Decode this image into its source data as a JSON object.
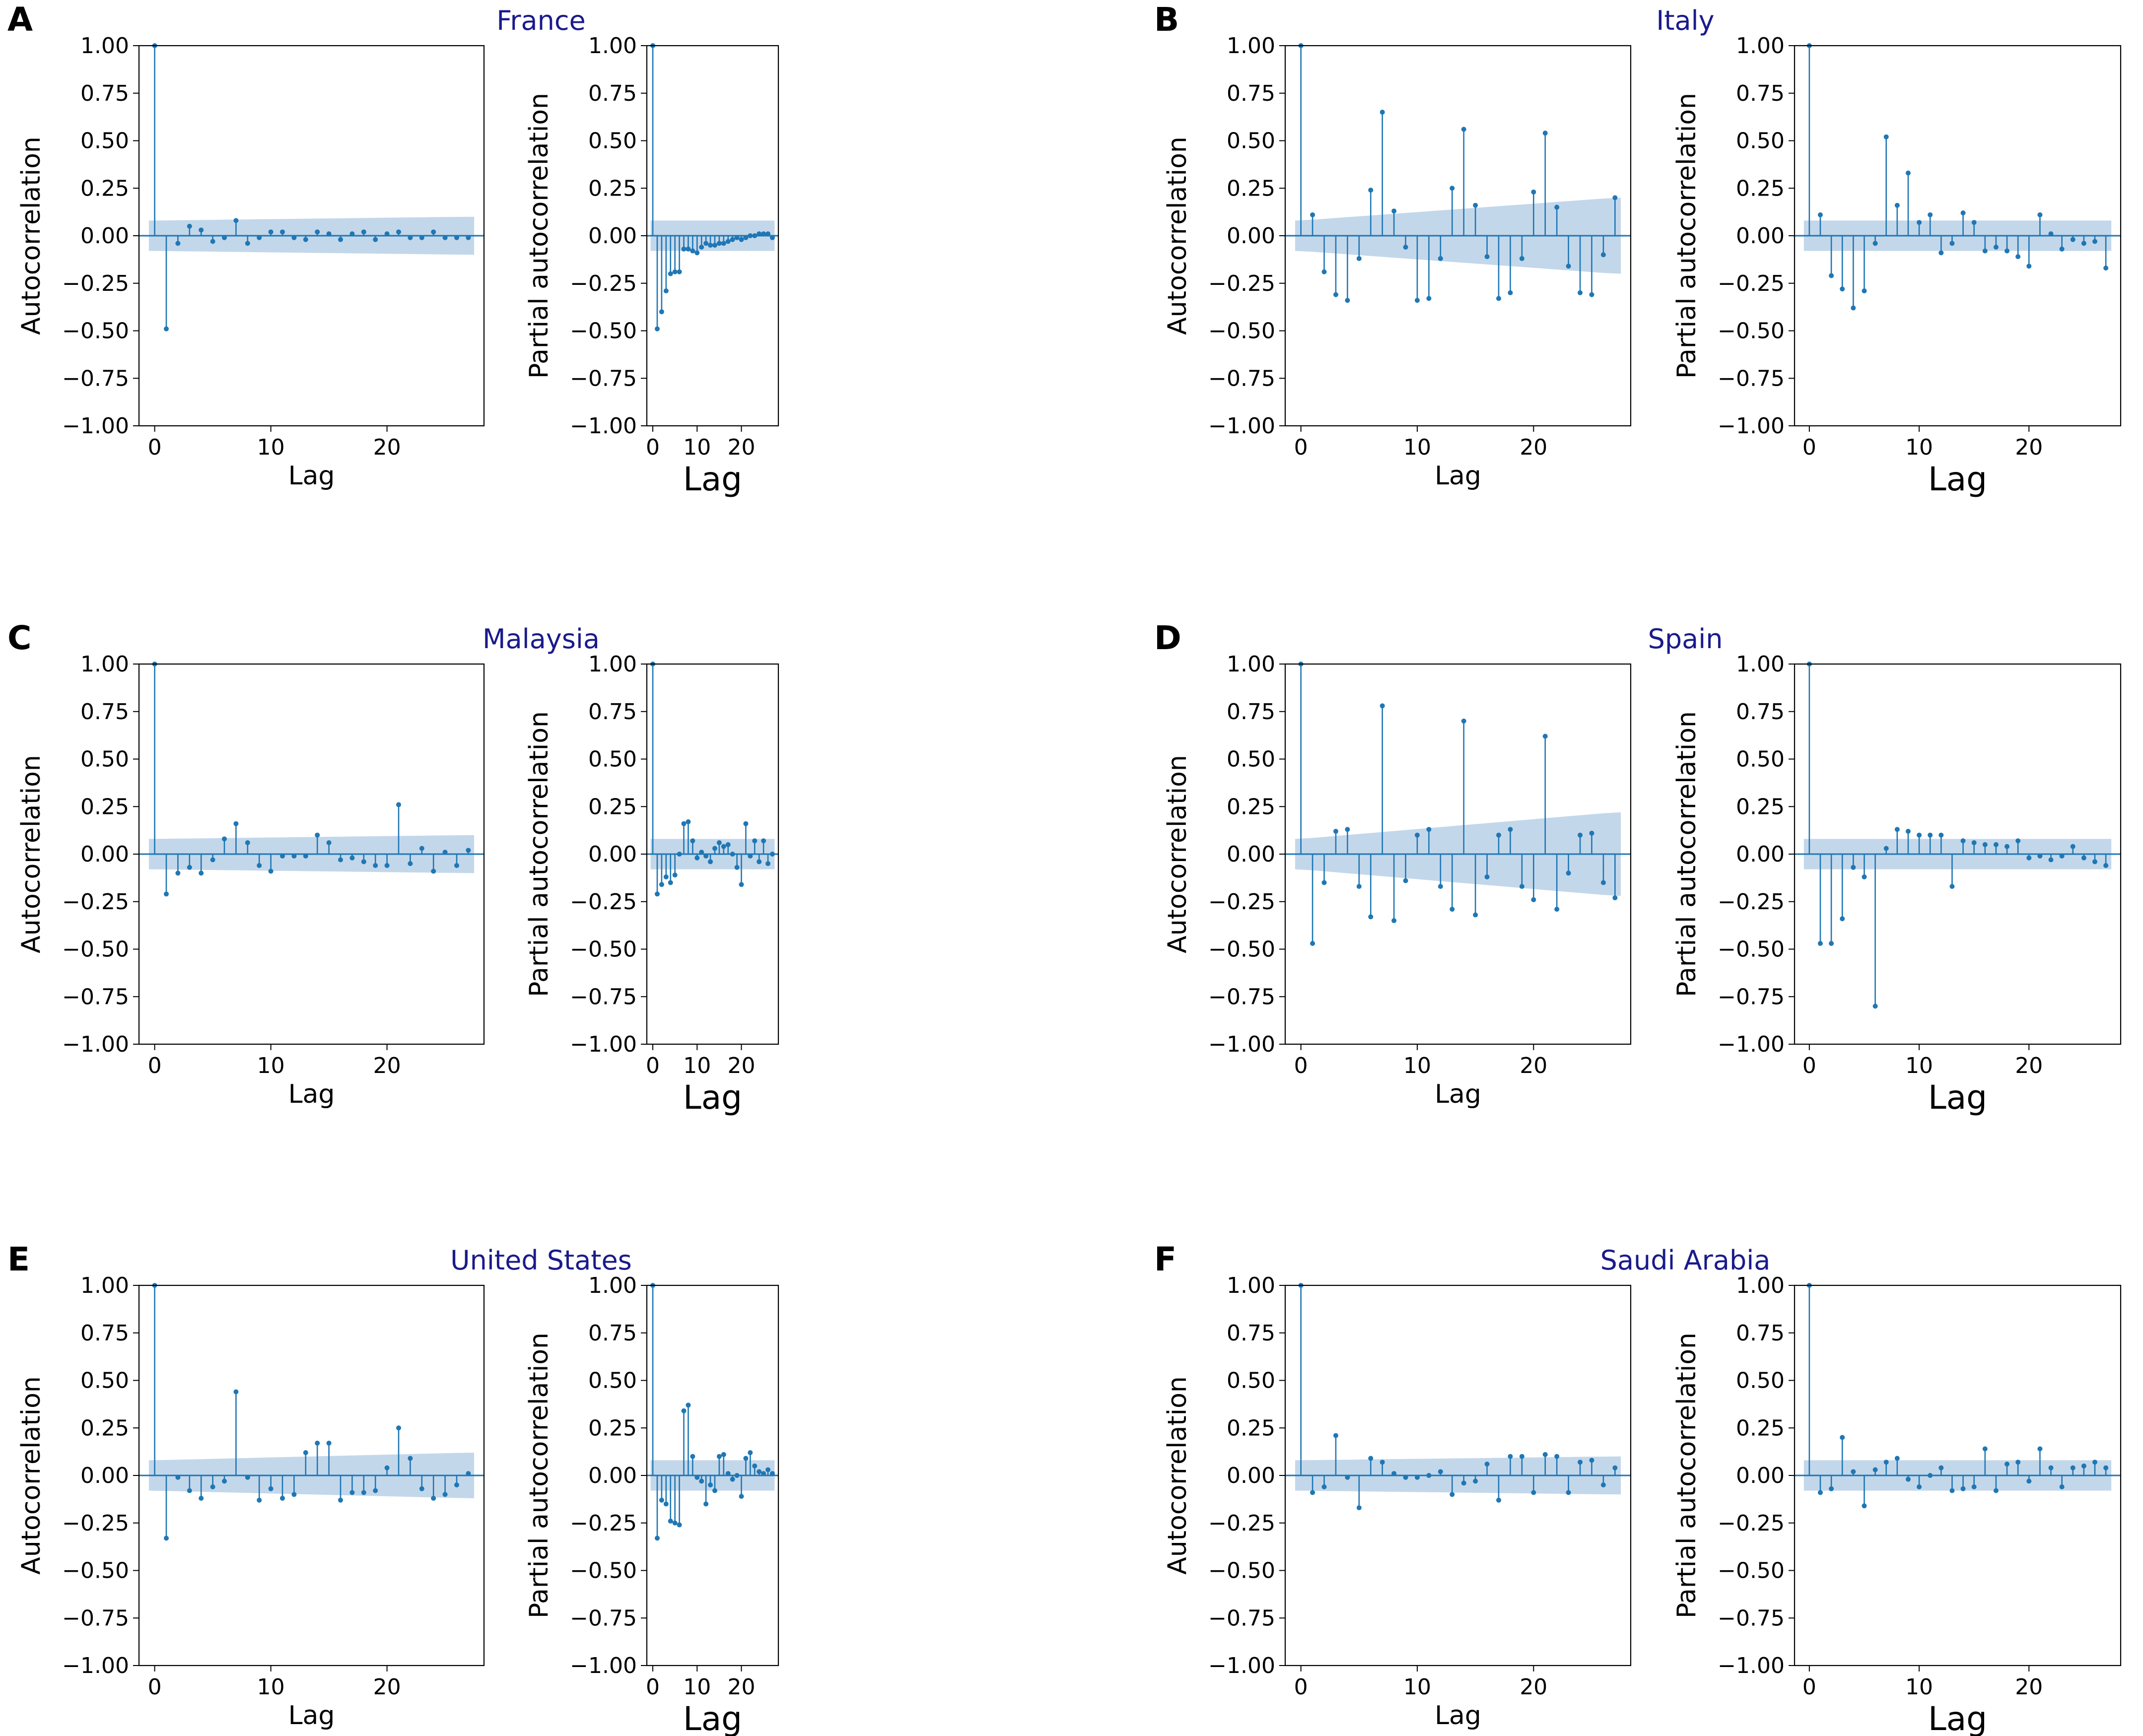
{
  "figure": {
    "colors": {
      "stem": "#1f77b4",
      "band": "#a9c6e3",
      "title": "#1a1a8c",
      "axis": "#000000"
    }
  },
  "chart_data": [
    {
      "panel_letter": "A",
      "country": "France",
      "plots": [
        {
          "type": "acf",
          "ylabel": "Autocorrelation",
          "xlabel": "Lag",
          "ylim": [
            -1,
            1
          ],
          "xticks": [
            0,
            10,
            20
          ],
          "yticks": [
            "1.00",
            "0.75",
            "0.50",
            "0.25",
            "0.00",
            "−0.25",
            "−0.50",
            "−0.75",
            "−1.00"
          ],
          "lags": [
            0,
            1,
            2,
            3,
            4,
            5,
            6,
            7,
            8,
            9,
            10,
            11,
            12,
            13,
            14,
            15,
            16,
            17,
            18,
            19,
            20,
            21,
            22,
            23,
            24,
            25,
            26,
            27
          ],
          "values": [
            1.0,
            -0.49,
            -0.04,
            0.05,
            0.03,
            -0.03,
            -0.01,
            0.08,
            -0.04,
            -0.01,
            0.02,
            0.02,
            -0.01,
            -0.02,
            0.02,
            0.01,
            -0.02,
            0.01,
            0.02,
            -0.02,
            0.01,
            0.02,
            -0.01,
            -0.01,
            0.02,
            -0.01,
            -0.01,
            -0.01
          ],
          "conf_band": {
            "start": 0.08,
            "end": 0.1
          }
        },
        {
          "type": "pacf",
          "ylabel": "Partial autocorrelation",
          "xlabel": "Lag",
          "ylim": [
            -1,
            1
          ],
          "xticks": [
            0,
            10,
            20
          ],
          "yticks": [
            "1.00",
            "0.75",
            "0.50",
            "0.25",
            "0.00",
            "−0.25",
            "−0.50",
            "−0.75",
            "−1.00"
          ],
          "lags": [
            0,
            1,
            2,
            3,
            4,
            5,
            6,
            7,
            8,
            9,
            10,
            11,
            12,
            13,
            14,
            15,
            16,
            17,
            18,
            19,
            20,
            21,
            22,
            23,
            24,
            25,
            26,
            27
          ],
          "values": [
            1.0,
            -0.49,
            -0.4,
            -0.29,
            -0.2,
            -0.19,
            -0.19,
            -0.07,
            -0.07,
            -0.08,
            -0.09,
            -0.06,
            -0.04,
            -0.05,
            -0.05,
            -0.04,
            -0.04,
            -0.03,
            -0.02,
            -0.01,
            -0.02,
            -0.01,
            0.0,
            0.0,
            0.01,
            0.01,
            0.01,
            -0.01
          ],
          "conf_band": {
            "start": 0.08,
            "end": 0.08
          }
        }
      ]
    },
    {
      "panel_letter": "B",
      "country": "Italy",
      "plots": [
        {
          "type": "acf",
          "ylabel": "Autocorrelation",
          "xlabel": "Lag",
          "ylim": [
            -1,
            1
          ],
          "xticks": [
            0,
            10,
            20
          ],
          "yticks": [
            "1.00",
            "0.75",
            "0.50",
            "0.25",
            "0.00",
            "−0.25",
            "−0.50",
            "−0.75",
            "−1.00"
          ],
          "lags": [
            0,
            1,
            2,
            3,
            4,
            5,
            6,
            7,
            8,
            9,
            10,
            11,
            12,
            13,
            14,
            15,
            16,
            17,
            18,
            19,
            20,
            21,
            22,
            23,
            24,
            25,
            26,
            27
          ],
          "values": [
            1.0,
            0.11,
            -0.19,
            -0.31,
            -0.34,
            -0.12,
            0.24,
            0.65,
            0.13,
            -0.06,
            -0.34,
            -0.33,
            -0.12,
            0.25,
            0.56,
            0.16,
            -0.11,
            -0.33,
            -0.3,
            -0.12,
            0.23,
            0.54,
            0.15,
            -0.16,
            -0.3,
            -0.31,
            -0.1,
            0.2
          ],
          "conf_band": {
            "start": 0.08,
            "end": 0.2
          }
        },
        {
          "type": "pacf",
          "ylabel": "Partial autocorrelation",
          "xlabel": "Lag",
          "ylim": [
            -1,
            1
          ],
          "xticks": [
            0,
            10,
            20
          ],
          "yticks": [
            "1.00",
            "0.75",
            "0.50",
            "0.25",
            "0.00",
            "−0.25",
            "−0.50",
            "−0.75",
            "−1.00"
          ],
          "lags": [
            0,
            1,
            2,
            3,
            4,
            5,
            6,
            7,
            8,
            9,
            10,
            11,
            12,
            13,
            14,
            15,
            16,
            17,
            18,
            19,
            20,
            21,
            22,
            23,
            24,
            25,
            26,
            27
          ],
          "values": [
            1.0,
            0.11,
            -0.21,
            -0.28,
            -0.38,
            -0.29,
            -0.04,
            0.52,
            0.16,
            0.33,
            0.07,
            0.11,
            -0.09,
            -0.04,
            0.12,
            0.07,
            -0.08,
            -0.06,
            -0.08,
            -0.11,
            -0.16,
            0.11,
            0.01,
            -0.07,
            -0.02,
            -0.04,
            -0.03,
            -0.17
          ],
          "conf_band": {
            "start": 0.08,
            "end": 0.08
          }
        }
      ]
    },
    {
      "panel_letter": "C",
      "country": "Malaysia",
      "plots": [
        {
          "type": "acf",
          "ylabel": "Autocorrelation",
          "xlabel": "Lag",
          "ylim": [
            -1,
            1
          ],
          "xticks": [
            0,
            10,
            20
          ],
          "yticks": [
            "1.00",
            "0.75",
            "0.50",
            "0.25",
            "0.00",
            "−0.25",
            "−0.50",
            "−0.75",
            "−1.00"
          ],
          "lags": [
            0,
            1,
            2,
            3,
            4,
            5,
            6,
            7,
            8,
            9,
            10,
            11,
            12,
            13,
            14,
            15,
            16,
            17,
            18,
            19,
            20,
            21,
            22,
            23,
            24,
            25,
            26,
            27
          ],
          "values": [
            1.0,
            -0.21,
            -0.1,
            -0.07,
            -0.1,
            -0.03,
            0.08,
            0.16,
            0.06,
            -0.06,
            -0.09,
            -0.01,
            -0.01,
            -0.01,
            0.1,
            0.06,
            -0.03,
            -0.02,
            -0.04,
            -0.06,
            -0.06,
            0.26,
            -0.05,
            0.03,
            -0.09,
            0.01,
            -0.06,
            0.02
          ],
          "conf_band": {
            "start": 0.08,
            "end": 0.1
          }
        },
        {
          "type": "pacf",
          "ylabel": "Partial autocorrelation",
          "xlabel": "Lag",
          "ylim": [
            -1,
            1
          ],
          "xticks": [
            0,
            10,
            20
          ],
          "yticks": [
            "1.00",
            "0.75",
            "0.50",
            "0.25",
            "0.00",
            "−0.25",
            "−0.50",
            "−0.75",
            "−1.00"
          ],
          "lags": [
            0,
            1,
            2,
            3,
            4,
            5,
            6,
            7,
            8,
            9,
            10,
            11,
            12,
            13,
            14,
            15,
            16,
            17,
            18,
            19,
            20,
            21,
            22,
            23,
            24,
            25,
            26,
            27
          ],
          "values": [
            1.0,
            -0.21,
            -0.16,
            -0.12,
            -0.15,
            -0.11,
            0.0,
            0.16,
            0.17,
            0.07,
            -0.02,
            0.01,
            -0.01,
            -0.04,
            0.03,
            0.06,
            0.04,
            0.05,
            0.0,
            -0.07,
            -0.16,
            0.16,
            -0.01,
            0.07,
            -0.04,
            0.07,
            -0.05,
            0.0
          ],
          "conf_band": {
            "start": 0.08,
            "end": 0.08
          }
        }
      ]
    },
    {
      "panel_letter": "D",
      "country": "Spain",
      "plots": [
        {
          "type": "acf",
          "ylabel": "Autocorrelation",
          "xlabel": "Lag",
          "ylim": [
            -1,
            1
          ],
          "xticks": [
            0,
            10,
            20
          ],
          "yticks": [
            "1.00",
            "0.75",
            "0.50",
            "0.25",
            "0.00",
            "−0.25",
            "−0.50",
            "−0.75",
            "−1.00"
          ],
          "lags": [
            0,
            1,
            2,
            3,
            4,
            5,
            6,
            7,
            8,
            9,
            10,
            11,
            12,
            13,
            14,
            15,
            16,
            17,
            18,
            19,
            20,
            21,
            22,
            23,
            24,
            25,
            26,
            27
          ],
          "values": [
            1.0,
            -0.47,
            -0.15,
            0.12,
            0.13,
            -0.17,
            -0.33,
            0.78,
            -0.35,
            -0.14,
            0.1,
            0.13,
            -0.17,
            -0.29,
            0.7,
            -0.32,
            -0.12,
            0.1,
            0.13,
            -0.17,
            -0.24,
            0.62,
            -0.29,
            -0.1,
            0.1,
            0.11,
            -0.15,
            -0.23
          ],
          "conf_band": {
            "start": 0.08,
            "end": 0.22
          }
        },
        {
          "type": "pacf",
          "ylabel": "Partial autocorrelation",
          "xlabel": "Lag",
          "ylim": [
            -1,
            1
          ],
          "xticks": [
            0,
            10,
            20
          ],
          "yticks": [
            "1.00",
            "0.75",
            "0.50",
            "0.25",
            "0.00",
            "−0.25",
            "−0.50",
            "−0.75",
            "−1.00"
          ],
          "lags": [
            0,
            1,
            2,
            3,
            4,
            5,
            6,
            7,
            8,
            9,
            10,
            11,
            12,
            13,
            14,
            15,
            16,
            17,
            18,
            19,
            20,
            21,
            22,
            23,
            24,
            25,
            26,
            27
          ],
          "values": [
            1.0,
            -0.47,
            -0.47,
            -0.34,
            -0.07,
            -0.12,
            -0.8,
            0.03,
            0.13,
            0.12,
            0.1,
            0.1,
            0.1,
            -0.17,
            0.07,
            0.06,
            0.05,
            0.05,
            0.04,
            0.07,
            -0.02,
            -0.01,
            -0.03,
            -0.01,
            0.04,
            -0.02,
            -0.04,
            -0.06
          ],
          "conf_band": {
            "start": 0.08,
            "end": 0.08
          }
        }
      ]
    },
    {
      "panel_letter": "E",
      "country": "United States",
      "plots": [
        {
          "type": "acf",
          "ylabel": "Autocorrelation",
          "xlabel": "Lag",
          "ylim": [
            -1,
            1
          ],
          "xticks": [
            0,
            10,
            20
          ],
          "yticks": [
            "1.00",
            "0.75",
            "0.50",
            "0.25",
            "0.00",
            "−0.25",
            "−0.50",
            "−0.75",
            "−1.00"
          ],
          "lags": [
            0,
            1,
            2,
            3,
            4,
            5,
            6,
            7,
            8,
            9,
            10,
            11,
            12,
            13,
            14,
            15,
            16,
            17,
            18,
            19,
            20,
            21,
            22,
            23,
            24,
            25,
            26,
            27
          ],
          "values": [
            1.0,
            -0.33,
            -0.01,
            -0.08,
            -0.12,
            -0.06,
            -0.03,
            0.44,
            -0.01,
            -0.13,
            -0.07,
            -0.12,
            -0.1,
            0.12,
            0.17,
            0.17,
            -0.13,
            -0.09,
            -0.09,
            -0.08,
            0.04,
            0.25,
            0.09,
            -0.07,
            -0.12,
            -0.1,
            -0.05,
            0.01
          ],
          "conf_band": {
            "start": 0.08,
            "end": 0.12
          }
        },
        {
          "type": "pacf",
          "ylabel": "Partial autocorrelation",
          "xlabel": "Lag",
          "ylim": [
            -1,
            1
          ],
          "xticks": [
            0,
            10,
            20
          ],
          "yticks": [
            "1.00",
            "0.75",
            "0.50",
            "0.25",
            "0.00",
            "−0.25",
            "−0.50",
            "−0.75",
            "−1.00"
          ],
          "lags": [
            0,
            1,
            2,
            3,
            4,
            5,
            6,
            7,
            8,
            9,
            10,
            11,
            12,
            13,
            14,
            15,
            16,
            17,
            18,
            19,
            20,
            21,
            22,
            23,
            24,
            25,
            26,
            27
          ],
          "values": [
            1.0,
            -0.33,
            -0.13,
            -0.15,
            -0.24,
            -0.25,
            -0.26,
            0.34,
            0.37,
            0.1,
            -0.01,
            -0.03,
            -0.15,
            -0.05,
            -0.08,
            0.1,
            0.11,
            0.01,
            -0.02,
            0.0,
            -0.11,
            0.09,
            0.12,
            0.05,
            0.02,
            0.01,
            0.03,
            0.01
          ],
          "conf_band": {
            "start": 0.08,
            "end": 0.08
          }
        }
      ]
    },
    {
      "panel_letter": "F",
      "country": "Saudi Arabia",
      "plots": [
        {
          "type": "acf",
          "ylabel": "Autocorrelation",
          "xlabel": "Lag",
          "ylim": [
            -1,
            1
          ],
          "xticks": [
            0,
            10,
            20
          ],
          "yticks": [
            "1.00",
            "0.75",
            "0.50",
            "0.25",
            "0.00",
            "−0.25",
            "−0.50",
            "−0.75",
            "−1.00"
          ],
          "lags": [
            0,
            1,
            2,
            3,
            4,
            5,
            6,
            7,
            8,
            9,
            10,
            11,
            12,
            13,
            14,
            15,
            16,
            17,
            18,
            19,
            20,
            21,
            22,
            23,
            24,
            25,
            26,
            27
          ],
          "values": [
            1.0,
            -0.09,
            -0.06,
            0.21,
            -0.01,
            -0.17,
            0.09,
            0.07,
            0.01,
            -0.01,
            -0.01,
            0.0,
            0.02,
            -0.1,
            -0.04,
            -0.03,
            0.06,
            -0.13,
            0.1,
            0.1,
            -0.09,
            0.11,
            0.1,
            -0.09,
            0.07,
            0.08,
            -0.05,
            0.04
          ],
          "conf_band": {
            "start": 0.08,
            "end": 0.1
          }
        },
        {
          "type": "pacf",
          "ylabel": "Partial autocorrelation",
          "xlabel": "Lag",
          "ylim": [
            -1,
            1
          ],
          "xticks": [
            0,
            10,
            20
          ],
          "yticks": [
            "1.00",
            "0.75",
            "0.50",
            "0.25",
            "0.00",
            "−0.25",
            "−0.50",
            "−0.75",
            "−1.00"
          ],
          "lags": [
            0,
            1,
            2,
            3,
            4,
            5,
            6,
            7,
            8,
            9,
            10,
            11,
            12,
            13,
            14,
            15,
            16,
            17,
            18,
            19,
            20,
            21,
            22,
            23,
            24,
            25,
            26,
            27
          ],
          "values": [
            1.0,
            -0.09,
            -0.07,
            0.2,
            0.02,
            -0.16,
            0.03,
            0.07,
            0.09,
            -0.02,
            -0.06,
            0.0,
            0.04,
            -0.08,
            -0.07,
            -0.06,
            0.14,
            -0.08,
            0.06,
            0.07,
            -0.03,
            0.14,
            0.04,
            -0.06,
            0.04,
            0.05,
            0.07,
            0.04
          ],
          "conf_band": {
            "start": 0.08,
            "end": 0.08
          }
        }
      ]
    }
  ]
}
